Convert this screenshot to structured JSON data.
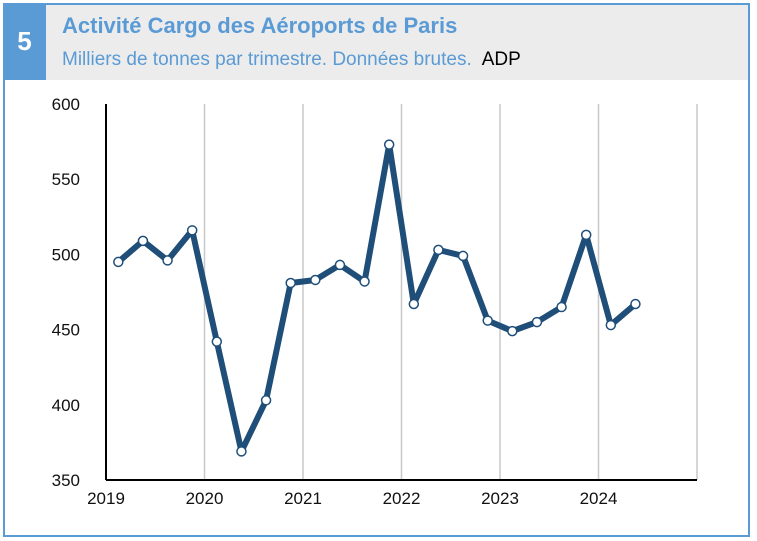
{
  "badge": "5",
  "header": {
    "title": "Activité Cargo des Aéroports de Paris",
    "subtitle": "Milliers de tonnes par trimestre. Données brutes.",
    "source": "ADP"
  },
  "colors": {
    "accent": "#5b9bd5",
    "line": "#1f4e79",
    "header_bg": "#ececec"
  },
  "chart_data": {
    "type": "line",
    "title": "Activité Cargo des Aéroports de Paris",
    "ylabel": "",
    "xlabel": "",
    "ylim": [
      350,
      600
    ],
    "yticks": [
      350,
      400,
      450,
      500,
      550,
      600
    ],
    "xticks": [
      "2019",
      "2020",
      "2021",
      "2022",
      "2023",
      "2024"
    ],
    "grid": "vertical",
    "x": [
      "2019T1",
      "2019T2",
      "2019T3",
      "2019T4",
      "2020T1",
      "2020T2",
      "2020T3",
      "2020T4",
      "2021T1",
      "2021T2",
      "2021T3",
      "2021T4",
      "2022T1",
      "2022T2",
      "2022T3",
      "2022T4",
      "2023T1",
      "2023T2",
      "2023T3",
      "2023T4",
      "2024T1",
      "2024T2"
    ],
    "values": [
      495,
      509,
      496,
      516,
      442,
      369,
      403,
      481,
      483,
      493,
      482,
      573,
      467,
      503,
      499,
      456,
      449,
      455,
      465,
      513,
      453,
      467
    ]
  }
}
